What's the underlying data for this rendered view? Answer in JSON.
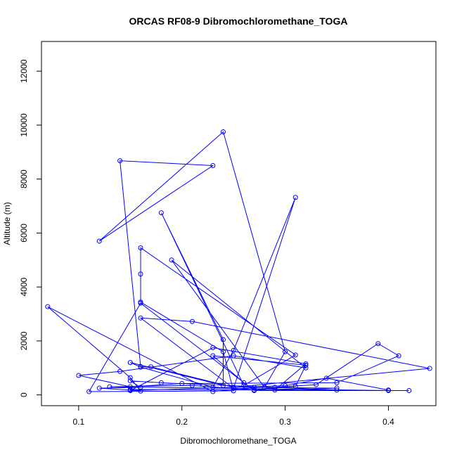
{
  "chart_data": {
    "type": "scatter",
    "mode": "lines+markers",
    "title": "ORCAS RF08-9 Dibromochloromethane_TOGA",
    "xlabel": "Dibromochloromethane_TOGA",
    "ylabel": "Altitude (m)",
    "xlim": [
      0.064,
      0.446
    ],
    "ylim": [
      -400,
      13100
    ],
    "xticks": [
      {
        "value": 0.1,
        "label": "0.1"
      },
      {
        "value": 0.2,
        "label": "0.2"
      },
      {
        "value": 0.3,
        "label": "0.3"
      },
      {
        "value": 0.4,
        "label": "0.4"
      }
    ],
    "yticks": [
      {
        "value": 0,
        "label": "0"
      },
      {
        "value": 2000,
        "label": "2000"
      },
      {
        "value": 4000,
        "label": "4000"
      },
      {
        "value": 6000,
        "label": "6000"
      },
      {
        "value": 8000,
        "label": "8000"
      },
      {
        "value": 10000,
        "label": "10000"
      },
      {
        "value": 12000,
        "label": "12000"
      }
    ],
    "grid": false,
    "legend": "none",
    "series_color": "#0000ff",
    "series": [
      {
        "x": [
          0.15,
          0.12,
          0.16,
          0.15,
          0.18,
          0.35,
          0.4,
          0.13,
          0.21,
          0.27,
          0.31,
          0.32,
          0.23,
          0.26,
          0.27,
          0.29,
          0.33,
          0.39,
          0.41,
          0.35,
          0.2,
          0.15,
          0.1,
          0.14,
          0.25,
          0.32,
          0.19,
          0.28,
          0.3,
          0.24,
          0.12,
          0.23,
          0.14,
          0.16,
          0.17,
          0.25,
          0.44,
          0.21,
          0.16,
          0.25,
          0.31,
          0.25,
          0.23,
          0.16,
          0.15,
          0.24,
          0.24,
          0.18,
          0.26,
          0.31,
          0.16,
          0.16,
          0.16,
          0.24,
          0.25,
          0.11,
          0.16,
          0.27,
          0.42,
          0.15,
          0.16,
          0.15,
          0.07,
          0.23,
          0.27,
          0.35,
          0.29,
          0.32,
          0.23,
          0.15,
          0.3,
          0.34,
          0.4
        ],
        "y": [
          180,
          250,
          280,
          520,
          450,
          180,
          160,
          300,
          350,
          180,
          320,
          1100,
          1450,
          450,
          180,
          280,
          380,
          1900,
          1450,
          450,
          420,
          300,
          720,
          870,
          1450,
          1000,
          5000,
          280,
          1600,
          9750,
          5700,
          8500,
          8680,
          1050,
          1040,
          280,
          980,
          2720,
          2850,
          250,
          7320,
          1650,
          280,
          1030,
          1200,
          350,
          2050,
          6750,
          350,
          1480,
          5450,
          4480,
          3440,
          1600,
          150,
          120,
          3400,
          160,
          160,
          200,
          140,
          640,
          3270,
          120,
          280,
          250,
          180,
          1150,
          1750,
          160,
          340,
          620,
          180
        ]
      }
    ]
  }
}
